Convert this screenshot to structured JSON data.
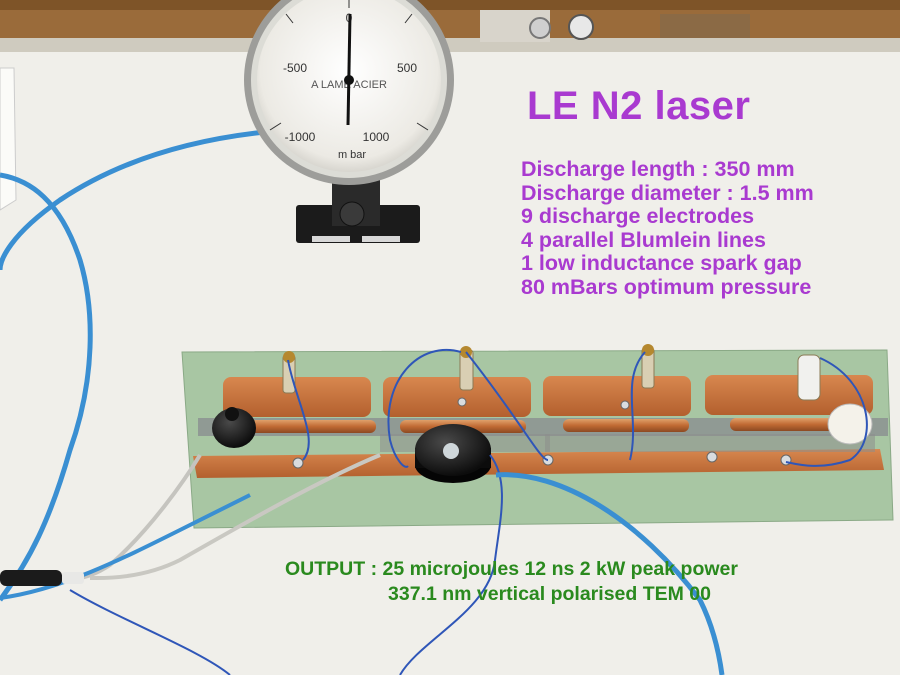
{
  "title": "LE N2 laser",
  "specs": [
    "Discharge length : 350 mm",
    "Discharge diameter : 1.5 mm",
    "9 discharge electrodes",
    "4 parallel Blumlein lines",
    "1 low inductance spark gap",
    "80 mBars optimum pressure"
  ],
  "output": {
    "line1": "OUTPUT : 25 microjoules 12 ns  2 kW peak power",
    "line2": "337.1 nm  vertical polarised TEM 00"
  },
  "gauge": {
    "brand": "A LAME   ACIER",
    "unit": "m bar",
    "ticks": [
      "0",
      "-500",
      "500",
      "-1000",
      "1000"
    ]
  },
  "colors": {
    "title": "#a93ad0",
    "specs": "#a93ad0",
    "output": "#2a8a1e",
    "background": "#f2f1ec",
    "copper": "#c8713c",
    "board": "#a9c8a4",
    "cable": "#3a8fd2"
  }
}
